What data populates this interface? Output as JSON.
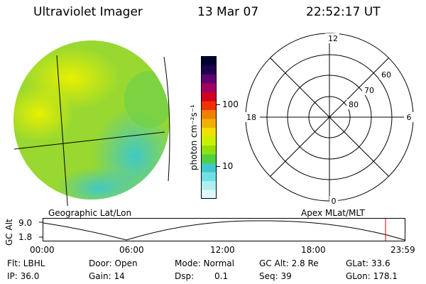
{
  "header": {
    "instrument": "Ultraviolet Imager",
    "date": "13 Mar 07",
    "time": "22:52:17 UT"
  },
  "colorbar": {
    "unit_label": "photon cm⁻²s⁻¹",
    "ticks": [
      "100",
      "10"
    ],
    "colors": [
      "#000030",
      "#200050",
      "#600070",
      "#a00060",
      "#d00020",
      "#f03000",
      "#f08000",
      "#f0b000",
      "#f0e000",
      "#c8f000",
      "#90e010",
      "#50d040",
      "#40c8c8",
      "#70e0e8",
      "#b0f0f0",
      "#e0f8f8"
    ]
  },
  "left_panel": {
    "caption": "Geographic Lat/Lon"
  },
  "polar": {
    "caption": "Apex MLat/MLT",
    "mlt_labels": [
      "12",
      "18",
      "6",
      "0"
    ],
    "lat_labels": [
      "60",
      "70",
      "80"
    ]
  },
  "altitude_plot": {
    "ylabel": "GC Alt",
    "yticks": [
      "9.0",
      "1.8"
    ],
    "xticks": [
      "00:00",
      "06:00",
      "12:00",
      "18:00",
      "23:59"
    ],
    "current_marker_color": "#d00000"
  },
  "footer": {
    "flt": "Flt: LBHL",
    "door": "Door: Open",
    "mode": "Mode: Normal",
    "gc_alt": "GC Alt: 2.8 Re",
    "glat": "GLat:  33.6",
    "ip": "IP: 36.0",
    "gain": "Gain: 14",
    "dsp_label": "Dsp:",
    "dsp_value": "0.1",
    "seq": "Seq: 39",
    "glon": "GLon: 178.1"
  }
}
